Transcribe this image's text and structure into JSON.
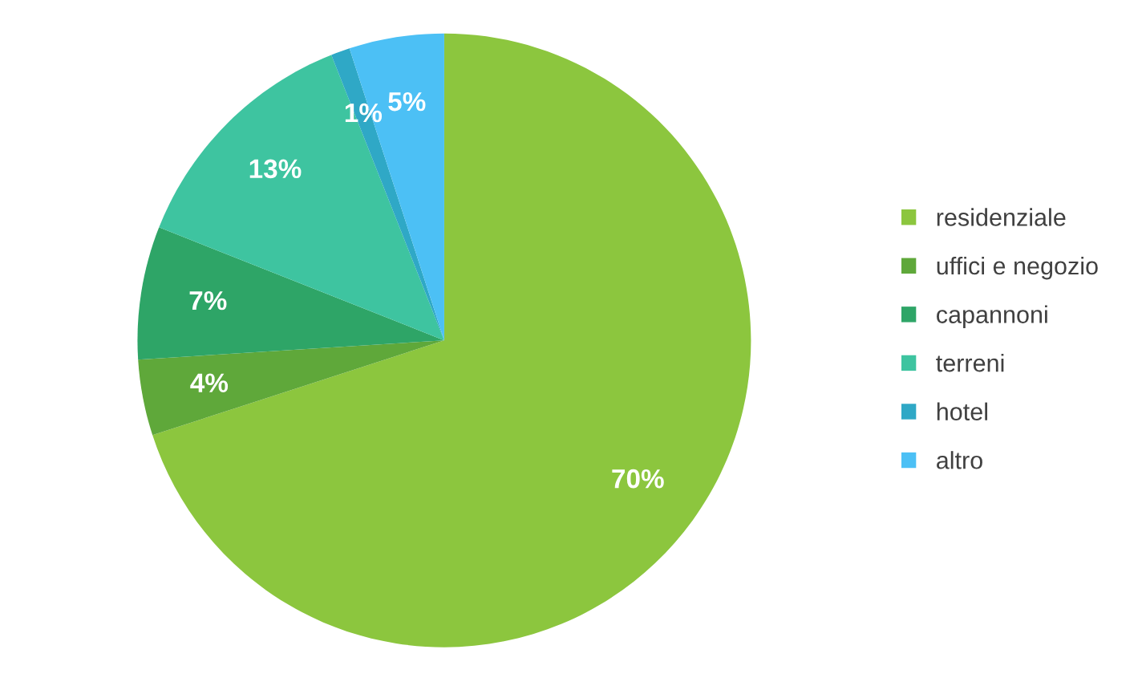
{
  "chart_data": {
    "type": "pie",
    "categories": [
      "residenziale",
      "uffici e negozio",
      "capannoni",
      "terreni",
      "hotel",
      "altro"
    ],
    "values": [
      70,
      4,
      7,
      13,
      1,
      5
    ],
    "value_labels": [
      "70%",
      "4%",
      "7%",
      "13%",
      "1%",
      "5%"
    ],
    "colors": [
      "#8cc63e",
      "#5fa83a",
      "#2ea567",
      "#3ec4a0",
      "#2fa8c6",
      "#4cc0f5"
    ],
    "legend": "right"
  }
}
